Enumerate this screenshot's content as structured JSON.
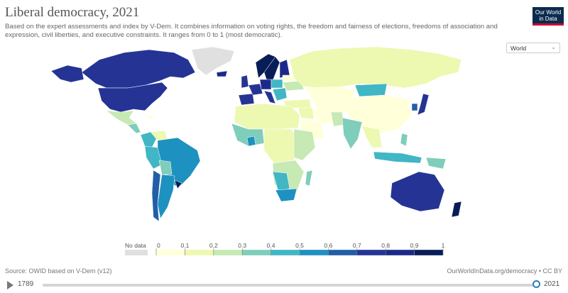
{
  "header": {
    "title": "Liberal democracy, 2021",
    "subtitle": "Based on the expert assessments and index by V-Dem. It combines information on voting rights, the freedom and fairness of elections, freedoms of association and expression, civil liberties, and executive constraints. It ranges from 0 to 1 (most democratic).",
    "logo_line1": "Our World",
    "logo_line2": "in Data"
  },
  "controls": {
    "region": "World",
    "caret": "⌄"
  },
  "legend": {
    "no_data_label": "No data",
    "ticks": [
      "0",
      "0.1",
      "0.2",
      "0.3",
      "0.4",
      "0.5",
      "0.6",
      "0.7",
      "0.8",
      "0.9",
      "1"
    ],
    "colors": [
      "#ffffd9",
      "#edf8b1",
      "#c7e9b4",
      "#7fcdbb",
      "#41b6c4",
      "#1d91c0",
      "#225ea8",
      "#253494",
      "#1b2a8a",
      "#081d58"
    ],
    "no_data_color": "#e0e0e0"
  },
  "footer": {
    "source": "Source: OWID based on V-Dem (v12)",
    "credit": "OurWorldInData.org/democracy • CC BY"
  },
  "timeline": {
    "start_year": "1789",
    "end_year": "2021",
    "position_fraction": 1.0
  }
}
